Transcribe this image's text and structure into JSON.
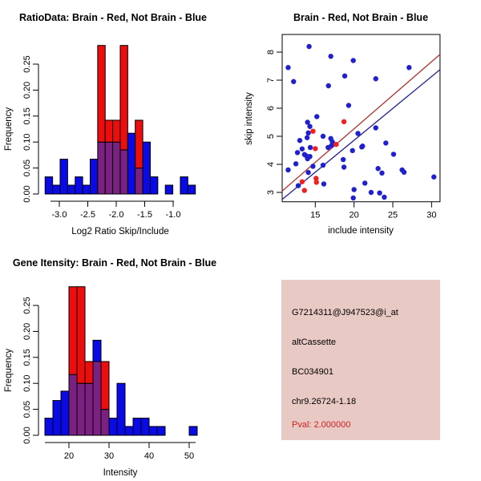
{
  "colors": {
    "hist_blue": "#0a0ae6",
    "hist_red": "#ee0d0d",
    "hist_overlap": "#7a2182",
    "bar_border": "#000000",
    "axis": "#000000",
    "dot_blue": "#2121cc",
    "dot_red": "#f22020",
    "line_red": "#b03030",
    "line_blue": "#202090",
    "info_bg": "#e9c9c3",
    "pval_red": "#cc2222"
  },
  "chart_data": [
    {
      "type": "bar",
      "subtype": "overlaid-histogram",
      "name": "ratio_histogram",
      "title": "RatioData: Brain - Red, Not Brain - Blue",
      "xlabel": "Log2 Ratio Skip/Include",
      "ylabel": "Frequency",
      "x_ticks": [
        -3.0,
        -2.5,
        -2.0,
        -1.5,
        -1.0
      ],
      "x_tick_labels": [
        "-3.0",
        "-2.5",
        "-2.0",
        "-1.5",
        "-1.0"
      ],
      "y_ticks": [
        0,
        0.05,
        0.1,
        0.15,
        0.2,
        0.25
      ],
      "y_tick_labels": [
        "0.00",
        "0.05",
        "0.10",
        "0.15",
        "0.20",
        "0.25"
      ],
      "xlim": [
        -3.3,
        -0.6
      ],
      "ylim": [
        0,
        0.29
      ],
      "grid": false,
      "bin_start": -3.25,
      "bin_width": 0.132,
      "series": [
        {
          "name": "Not Brain",
          "color_key": "hist_blue",
          "values": [
            0.033,
            0.017,
            0.067,
            0.017,
            0.033,
            0.017,
            0.067,
            0.1,
            0.1,
            0.1,
            0.085,
            0.117,
            0.05,
            0.1,
            0.033,
            0,
            0.017,
            0,
            0.033,
            0.017
          ]
        },
        {
          "name": "Brain",
          "color_key": "hist_red",
          "values": [
            0,
            0,
            0,
            0,
            0,
            0,
            0,
            0.286,
            0.142,
            0.142,
            0.286,
            0,
            0.142,
            0,
            0,
            0,
            0,
            0,
            0,
            0
          ]
        }
      ]
    },
    {
      "type": "scatter",
      "name": "intensity_scatter",
      "title": "Brain - Red, Not Brain - Blue",
      "xlabel": "include intensity",
      "ylabel": "skip intensity",
      "x_ticks": [
        15,
        20,
        25,
        30
      ],
      "x_tick_labels": [
        "15",
        "20",
        "25",
        "30"
      ],
      "y_ticks": [
        3,
        4,
        5,
        6,
        7,
        8
      ],
      "y_tick_labels": [
        "3",
        "4",
        "5",
        "6",
        "7",
        "8"
      ],
      "xlim": [
        10.7,
        31.1
      ],
      "ylim": [
        2.5,
        8.65
      ],
      "grid": false,
      "series": [
        {
          "name": "Not Brain",
          "color_key": "dot_blue",
          "points": [
            [
              11.5,
              7.45
            ],
            [
              12.2,
              6.95
            ],
            [
              14.2,
              8.2
            ],
            [
              17.0,
              7.85
            ],
            [
              19.9,
              7.7
            ],
            [
              18.8,
              7.15
            ],
            [
              16.7,
              6.8
            ],
            [
              22.8,
              7.05
            ],
            [
              27.1,
              7.45
            ],
            [
              19.3,
              6.1
            ],
            [
              15.2,
              5.7
            ],
            [
              14.0,
              5.5
            ],
            [
              14.3,
              5.35
            ],
            [
              14.1,
              5.12
            ],
            [
              13.95,
              4.95
            ],
            [
              16.0,
              5.0
            ],
            [
              17.0,
              4.92
            ],
            [
              17.2,
              4.8
            ],
            [
              17.1,
              4.67
            ],
            [
              16.65,
              4.6
            ],
            [
              20.5,
              5.1
            ],
            [
              21.0,
              4.62
            ],
            [
              22.8,
              5.3
            ],
            [
              24.1,
              4.76
            ],
            [
              25.1,
              4.36
            ],
            [
              13.0,
              4.85
            ],
            [
              14.35,
              4.6
            ],
            [
              13.3,
              4.55
            ],
            [
              12.7,
              4.42
            ],
            [
              13.6,
              4.35
            ],
            [
              13.85,
              4.3
            ],
            [
              14.3,
              4.28
            ],
            [
              14.0,
              4.2
            ],
            [
              12.5,
              4.02
            ],
            [
              14.7,
              3.93
            ],
            [
              14.1,
              3.71
            ],
            [
              11.5,
              3.8
            ],
            [
              16.0,
              3.97
            ],
            [
              18.6,
              4.17
            ],
            [
              18.7,
              3.9
            ],
            [
              19.8,
              4.49
            ],
            [
              21.1,
              4.65
            ],
            [
              23.1,
              3.85
            ],
            [
              23.6,
              3.69
            ],
            [
              26.2,
              3.8
            ],
            [
              26.45,
              3.72
            ],
            [
              30.3,
              3.55
            ],
            [
              12.8,
              3.24
            ],
            [
              16.1,
              3.3
            ],
            [
              20.0,
              3.1
            ],
            [
              21.4,
              3.33
            ],
            [
              22.2,
              3.0
            ],
            [
              23.3,
              2.98
            ],
            [
              23.9,
              2.83
            ],
            [
              19.9,
              2.8
            ]
          ]
        },
        {
          "name": "Brain",
          "color_key": "dot_red",
          "points": [
            [
              14.7,
              5.18
            ],
            [
              15.0,
              4.56
            ],
            [
              18.7,
              5.52
            ],
            [
              17.7,
              4.71
            ],
            [
              13.3,
              3.38
            ],
            [
              13.6,
              3.07
            ],
            [
              15.1,
              3.5
            ],
            [
              15.15,
              3.36
            ]
          ]
        }
      ],
      "lines": [
        {
          "name": "brain-fit-line",
          "color_key": "line_red",
          "x1": 10.73,
          "y1": 3.05,
          "x2": 31.1,
          "y2": 7.92
        },
        {
          "name": "notbrain-fit-line",
          "color_key": "line_blue",
          "x1": 10.73,
          "y1": 2.75,
          "x2": 31.1,
          "y2": 7.38
        }
      ]
    },
    {
      "type": "bar",
      "subtype": "overlaid-histogram",
      "name": "gene_intensity_histogram",
      "title": "Gene Itensity: Brain - Red, Not Brain - Blue",
      "xlabel": "Intensity",
      "ylabel": "Frequency",
      "x_ticks": [
        20,
        30,
        40,
        50
      ],
      "x_tick_labels": [
        "20",
        "30",
        "40",
        "50"
      ],
      "y_ticks": [
        0,
        0.05,
        0.1,
        0.15,
        0.2,
        0.25
      ],
      "y_tick_labels": [
        "0.00",
        "0.05",
        "0.10",
        "0.15",
        "0.20",
        "0.25"
      ],
      "xlim": [
        14,
        52
      ],
      "ylim": [
        0,
        0.29
      ],
      "grid": false,
      "bin_start": 14,
      "bin_width": 2,
      "series": [
        {
          "name": "Not Brain",
          "color_key": "hist_blue",
          "values": [
            0.033,
            0.067,
            0.085,
            0.117,
            0.1,
            0.1,
            0.183,
            0.05,
            0.033,
            0.1,
            0.017,
            0.033,
            0.033,
            0.017,
            0.017,
            0,
            0,
            0,
            0.017
          ]
        },
        {
          "name": "Brain",
          "color_key": "hist_red",
          "values": [
            0,
            0,
            0,
            0.286,
            0.286,
            0.142,
            0.142,
            0.142,
            0,
            0,
            0,
            0,
            0,
            0,
            0,
            0,
            0,
            0,
            0
          ]
        }
      ]
    }
  ],
  "info_panel": {
    "lines": [
      {
        "text": "G7214311@J947523@i_at",
        "color": "#000000"
      },
      {
        "text": "altCassette",
        "color": "#000000"
      },
      {
        "text": "BC034901",
        "color": "#000000"
      },
      {
        "text": "chr9.26724-1.18",
        "color": "#000000"
      },
      {
        "text": "Pval: 2.000000",
        "color": "#cc2222"
      }
    ]
  }
}
